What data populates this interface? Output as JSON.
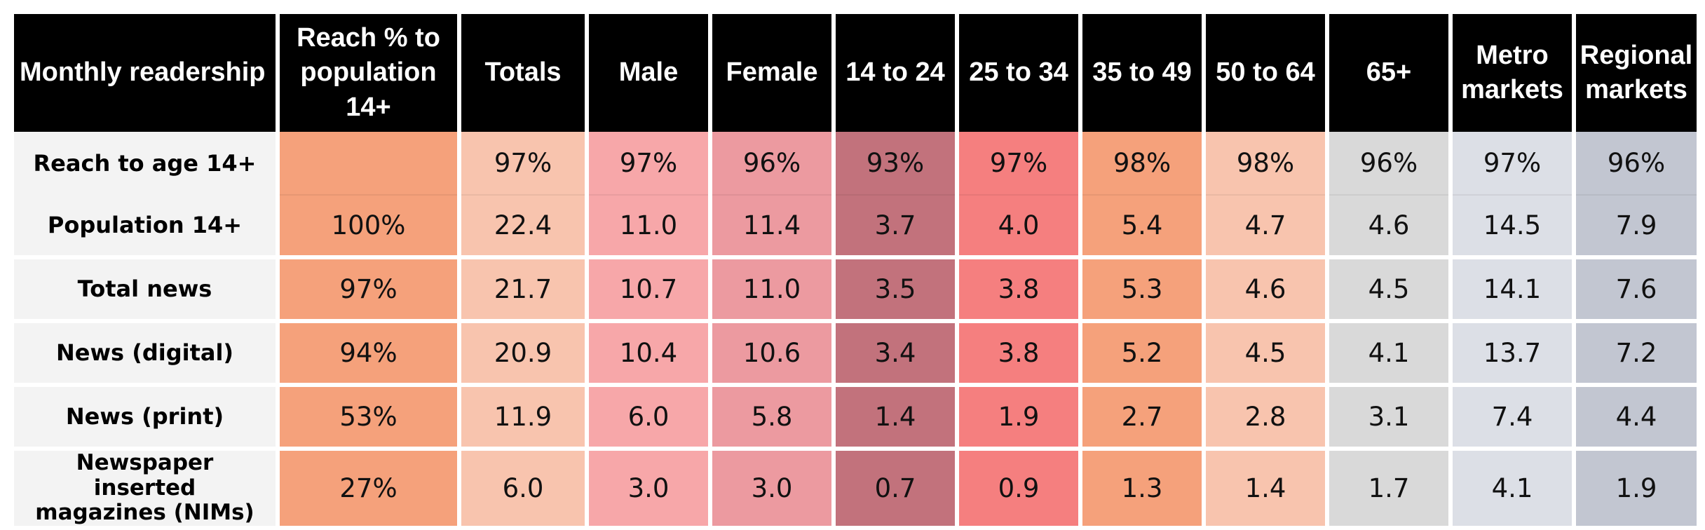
{
  "chart_data": {
    "type": "table",
    "columns": [
      "Monthly readership",
      "Reach % to population 14+",
      "Totals",
      "Male",
      "Female",
      "14 to 24",
      "25 to 34",
      "35 to 49",
      "50 to 64",
      "65+",
      "Metro markets",
      "Regional markets"
    ],
    "column_colors": [
      "#f3f3f3",
      "#f5a17b",
      "#f8c4ae",
      "#f7a7a9",
      "#ec9aa0",
      "#c2727c",
      "#f57f7f",
      "#f5a17b",
      "#f8c4ae",
      "#d9d9d9",
      "#dcdfe6",
      "#c2c6d1"
    ],
    "header_color": "#000000",
    "rows": [
      {
        "label": "Reach to age 14+",
        "values": [
          "",
          "97%",
          "97%",
          "96%",
          "93%",
          "97%",
          "98%",
          "98%",
          "96%",
          "97%",
          "96%"
        ]
      },
      {
        "label": "Population 14+",
        "values": [
          "100%",
          "22.4",
          "11.0",
          "11.4",
          "3.7",
          "4.0",
          "5.4",
          "4.7",
          "4.6",
          "14.5",
          "7.9"
        ]
      },
      {
        "label": "Total news",
        "values": [
          "97%",
          "21.7",
          "10.7",
          "11.0",
          "3.5",
          "3.8",
          "5.3",
          "4.6",
          "4.5",
          "14.1",
          "7.6"
        ]
      },
      {
        "label": "News (digital)",
        "values": [
          "94%",
          "20.9",
          "10.4",
          "10.6",
          "3.4",
          "3.8",
          "5.2",
          "4.5",
          "4.1",
          "13.7",
          "7.2"
        ]
      },
      {
        "label": "News (print)",
        "values": [
          "53%",
          "11.9",
          "6.0",
          "5.8",
          "1.4",
          "1.9",
          "2.7",
          "2.8",
          "3.1",
          "7.4",
          "4.4"
        ]
      },
      {
        "label": "Newspaper inserted magazines (NIMs)",
        "values": [
          "27%",
          "6.0",
          "3.0",
          "3.0",
          "0.7",
          "0.9",
          "1.3",
          "1.4",
          "1.7",
          "4.1",
          "1.9"
        ]
      }
    ]
  }
}
